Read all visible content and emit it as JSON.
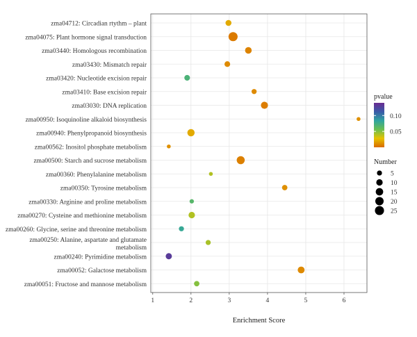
{
  "chart_data": {
    "type": "scatter",
    "xlabel": "Enrichment Score",
    "xlim": [
      0.95,
      6.6
    ],
    "xticks": [
      1,
      2,
      3,
      4,
      5,
      6
    ],
    "grid": true,
    "categories": [
      "zma04712: Circadian rtythm – plant",
      "zma04075: Plant hormone signal transduction",
      "zma03440: Homologous recombination",
      "zma03430: Mismatch repair",
      "zma03420: Nucleotide excision repair",
      "zma03410: Base excision repair",
      "zma03030: DNA replication",
      "zma00950: Isoquinoline alkaloid biosynthesis",
      "zma00940: Phenylpropanoid biosynthesis",
      "zma00562: Inositol phosphate metabolism",
      "zma00500: Starch and sucrose metabolism",
      "zma00360: Phenylalanine metabolism",
      "zma00350: Tyrosine metabolism",
      "zma00330: Arginine and proline metabolism",
      "zma00270: Cysteine and methionine metabolism",
      "zma00260: Glycine, serine and threonine metabolism",
      "zma00250: Alanine, aspartate and glutamate metabolism",
      "zma00240: Pyrimidine metabolism",
      "zma00052: Galactose metabolism",
      "zma00051: Fructose and mannose metabolism"
    ],
    "points": [
      {
        "category": "zma04712: Circadian rtythm – plant",
        "x": 2.98,
        "number": 8,
        "pvalue": 0.02
      },
      {
        "category": "zma04075: Plant hormone signal transduction",
        "x": 3.1,
        "number": 25,
        "pvalue": 0.005
      },
      {
        "category": "zma03440: Homologous recombination",
        "x": 3.5,
        "number": 11,
        "pvalue": 0.008
      },
      {
        "category": "zma03430: Mismatch repair",
        "x": 2.95,
        "number": 7,
        "pvalue": 0.01
      },
      {
        "category": "zma03420: Nucleotide excision repair",
        "x": 1.9,
        "number": 7,
        "pvalue": 0.07
      },
      {
        "category": "zma03410: Base excision repair",
        "x": 3.65,
        "number": 5,
        "pvalue": 0.01
      },
      {
        "category": "zma03030: DNA replication",
        "x": 3.92,
        "number": 13,
        "pvalue": 0.006
      },
      {
        "category": "zma00950: Isoquinoline alkaloid biosynthesis",
        "x": 6.38,
        "number": 2,
        "pvalue": 0.012
      },
      {
        "category": "zma00940: Phenylpropanoid biosynthesis",
        "x": 2.0,
        "number": 14,
        "pvalue": 0.02
      },
      {
        "category": "zma00562: Inositol phosphate metabolism",
        "x": 1.42,
        "number": 2,
        "pvalue": 0.012
      },
      {
        "category": "zma00500: Starch and sucrose metabolism",
        "x": 3.3,
        "number": 18,
        "pvalue": 0.007
      },
      {
        "category": "zma00360: Phenylalanine metabolism",
        "x": 2.52,
        "number": 2,
        "pvalue": 0.04
      },
      {
        "category": "zma00350: Tyrosine metabolism",
        "x": 4.45,
        "number": 6,
        "pvalue": 0.012
      },
      {
        "category": "zma00330: Arginine and proline metabolism",
        "x": 2.02,
        "number": 3,
        "pvalue": 0.065
      },
      {
        "category": "zma00270: Cysteine and methionine metabolism",
        "x": 2.02,
        "number": 10,
        "pvalue": 0.04
      },
      {
        "category": "zma00260: Glycine, serine and threonine metabolism",
        "x": 1.75,
        "number": 5,
        "pvalue": 0.08
      },
      {
        "category": "zma00250: Alanine, aspartate and glutamate metabolism",
        "x": 2.45,
        "number": 5,
        "pvalue": 0.042
      },
      {
        "category": "zma00240: Pyrimidine metabolism",
        "x": 1.42,
        "number": 9,
        "pvalue": 0.13
      },
      {
        "category": "zma00052: Galactose metabolism",
        "x": 4.88,
        "number": 12,
        "pvalue": 0.01
      },
      {
        "category": "zma00051: Fructose and mannose metabolism",
        "x": 2.15,
        "number": 6,
        "pvalue": 0.05
      }
    ],
    "legend_color": {
      "title": "pvalue",
      "range": [
        0.0,
        0.14
      ],
      "ticks": [
        0.1,
        0.05
      ],
      "tick_labels": [
        "0.10",
        "0.05"
      ],
      "colors": [
        "#d96a00",
        "#e6c300",
        "#6abf50",
        "#2fa4a0",
        "#3a5aa8",
        "#6a2c91"
      ],
      "placement": "right"
    },
    "legend_size": {
      "title": "Number",
      "values": [
        5,
        10,
        15,
        20,
        25
      ],
      "labels": [
        "5",
        "10",
        "15",
        "20",
        "25"
      ],
      "color": "#000000",
      "placement": "right"
    },
    "panel_color": "#ffffff",
    "grid_color": "#e6e6e6"
  }
}
